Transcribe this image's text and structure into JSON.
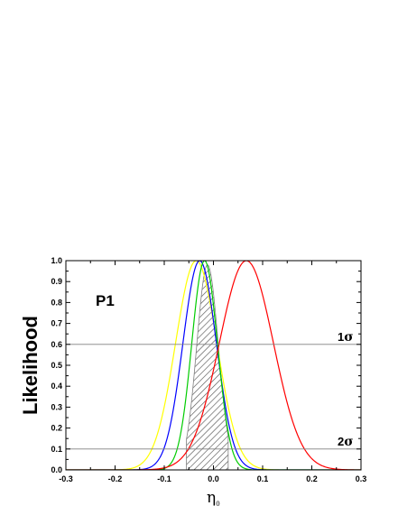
{
  "chart_data": {
    "type": "line",
    "panel_label": "P1",
    "xlabel": "η",
    "xlabel_sub": "0",
    "ylabel": "Likelihood",
    "xlim": [
      -0.3,
      0.3
    ],
    "ylim": [
      0.0,
      1.0
    ],
    "x_ticks": [
      "-0.3",
      "-0.2",
      "-0.1",
      "0.0",
      "0.1",
      "0.2",
      "0.3"
    ],
    "y_ticks": [
      "0.0",
      "0.1",
      "0.2",
      "0.3",
      "0.4",
      "0.5",
      "0.6",
      "0.7",
      "0.8",
      "0.9",
      "1.0"
    ],
    "x_minor_step": 0.05,
    "y_minor_step": 0.05,
    "grid": false,
    "reference_lines": [
      {
        "y": 0.6,
        "label_num": "1",
        "label_sym": "σ"
      },
      {
        "y": 0.1,
        "label_num": "2",
        "label_sym": "σ"
      }
    ],
    "series": [
      {
        "color": "#ffff00",
        "peak_x": -0.035,
        "sigma": 0.042,
        "peak_y": 1.0
      },
      {
        "color": "#0000ff",
        "peak_x": -0.028,
        "sigma": 0.034,
        "peak_y": 1.0
      },
      {
        "color": "#00cc00",
        "peak_x": -0.018,
        "sigma": 0.026,
        "peak_y": 1.0
      },
      {
        "color": "#ff0000",
        "peak_x": 0.067,
        "sigma": 0.055,
        "peak_y": 1.0
      }
    ],
    "shaded_region": {
      "color": "#808080",
      "pattern": "diagonal-hatch",
      "peak_x": -0.012,
      "sigma": 0.022,
      "peak_y": 0.98,
      "x_start": -0.055,
      "x_end": 0.03
    }
  }
}
